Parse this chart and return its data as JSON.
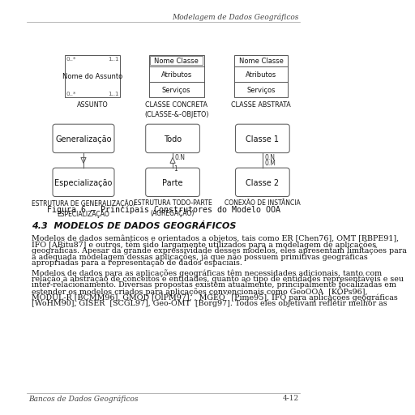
{
  "header_right_text": "Modelagem de Dados Geográficos",
  "footer_left_text": "Bancos de Dados Geográficos",
  "footer_right_text": "4-12",
  "section_title": "4.3  MODELOS DE DADOS GEOGRÁFICOS",
  "paragraph1_lines": [
    "Modelos de dados semânticos e orientados a objetos, tais como ER [Chen76], OMT [RBPE91],",
    "IFO [ABitu87] e outros, têm sido largamente utilizados para a modelagem de aplicações",
    "geográficas. Apesar da grande expressividade desses modelos, eles apresentam limitações para",
    "a adequada modelagem dessas aplicações, já que não possuem primitivas geográficas",
    "apropriadas para a representação de dados espaciais."
  ],
  "paragraph2_lines": [
    "Modelos de dados para as aplicações geográficas têm necessidades adicionais, tanto com",
    "relação à abstração de conceitos e entidades, quanto ao tipo de entidades representáveis e seu",
    "inter-relacionamento. Diversas propostas existem atualmente, principalmente focalizadas em",
    "estender os modelos criados para aplicações convencionais como GeoOOA  [KÔPs96],",
    "MODUL-R [BCMM96], GMOD [OlPM97], , MGEO´ [Pime95], IFO para aplicações geográficas",
    "[WoHM90], GISER  [SCGL97], Geo-OMT  [Borg97]. Todos eles objetivam refletir melhor as"
  ],
  "figure_caption": "Figura 6 – Principais Construtores do Modelo OOA",
  "bg_color": "#ffffff",
  "diagram_edge": "#555555",
  "text_color": "#111111",
  "label_color": "#333333"
}
